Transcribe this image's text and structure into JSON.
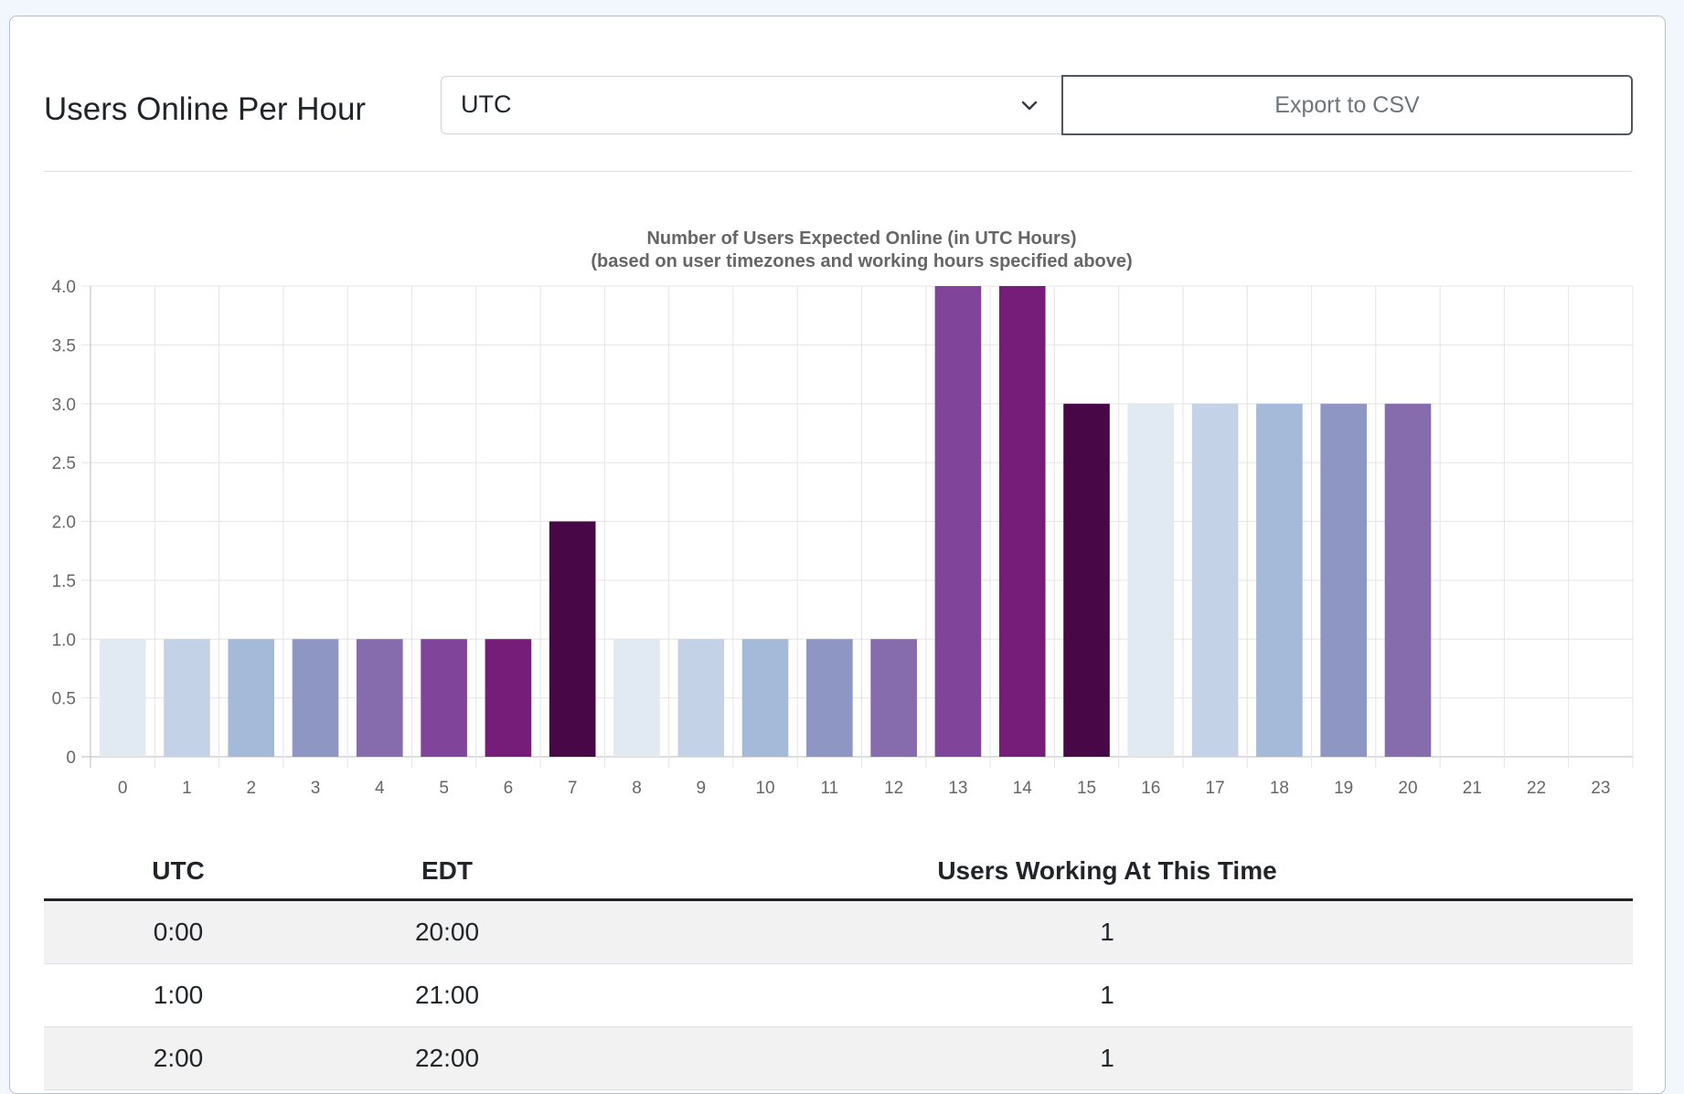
{
  "header": {
    "title": "Users Online Per Hour",
    "timezone_select": {
      "value": "UTC",
      "icon": "chevron-down-icon"
    },
    "export_button": "Export to CSV"
  },
  "chart_data": {
    "type": "bar",
    "title": "Number of Users Expected Online (in UTC Hours)",
    "subtitle": "(based on user timezones and working hours specified above)",
    "xlabel": "",
    "ylabel": "",
    "categories": [
      "0",
      "1",
      "2",
      "3",
      "4",
      "5",
      "6",
      "7",
      "8",
      "9",
      "10",
      "11",
      "12",
      "13",
      "14",
      "15",
      "16",
      "17",
      "18",
      "19",
      "20",
      "21",
      "22",
      "23"
    ],
    "values": [
      1,
      1,
      1,
      1,
      1,
      1,
      1,
      2,
      1,
      1,
      1,
      1,
      1,
      4,
      4,
      3,
      3,
      3,
      3,
      3,
      3,
      0,
      0,
      0
    ],
    "bar_colors": [
      "#e1e9f3",
      "#c3d2e6",
      "#a5bad9",
      "#8e97c4",
      "#866bad",
      "#80449a",
      "#751d78",
      "#480847",
      "#e1e9f3",
      "#c3d2e6",
      "#a5bad9",
      "#8e97c4",
      "#866bad",
      "#80449a",
      "#751d78",
      "#480847",
      "#e1e9f3",
      "#c3d2e6",
      "#a5bad9",
      "#8e97c4",
      "#866bad",
      "#80449a",
      "#751d78",
      "#480847"
    ],
    "ylim": [
      0,
      4
    ],
    "yticks": [
      "0",
      "0.5",
      "1.0",
      "1.5",
      "2.0",
      "2.5",
      "3.0",
      "3.5",
      "4.0"
    ],
    "grid": true,
    "legend": "none"
  },
  "table": {
    "headers": [
      "UTC",
      "EDT",
      "Users Working At This Time"
    ],
    "rows": [
      [
        "0:00",
        "20:00",
        "1"
      ],
      [
        "1:00",
        "21:00",
        "1"
      ],
      [
        "2:00",
        "22:00",
        "1"
      ]
    ]
  }
}
